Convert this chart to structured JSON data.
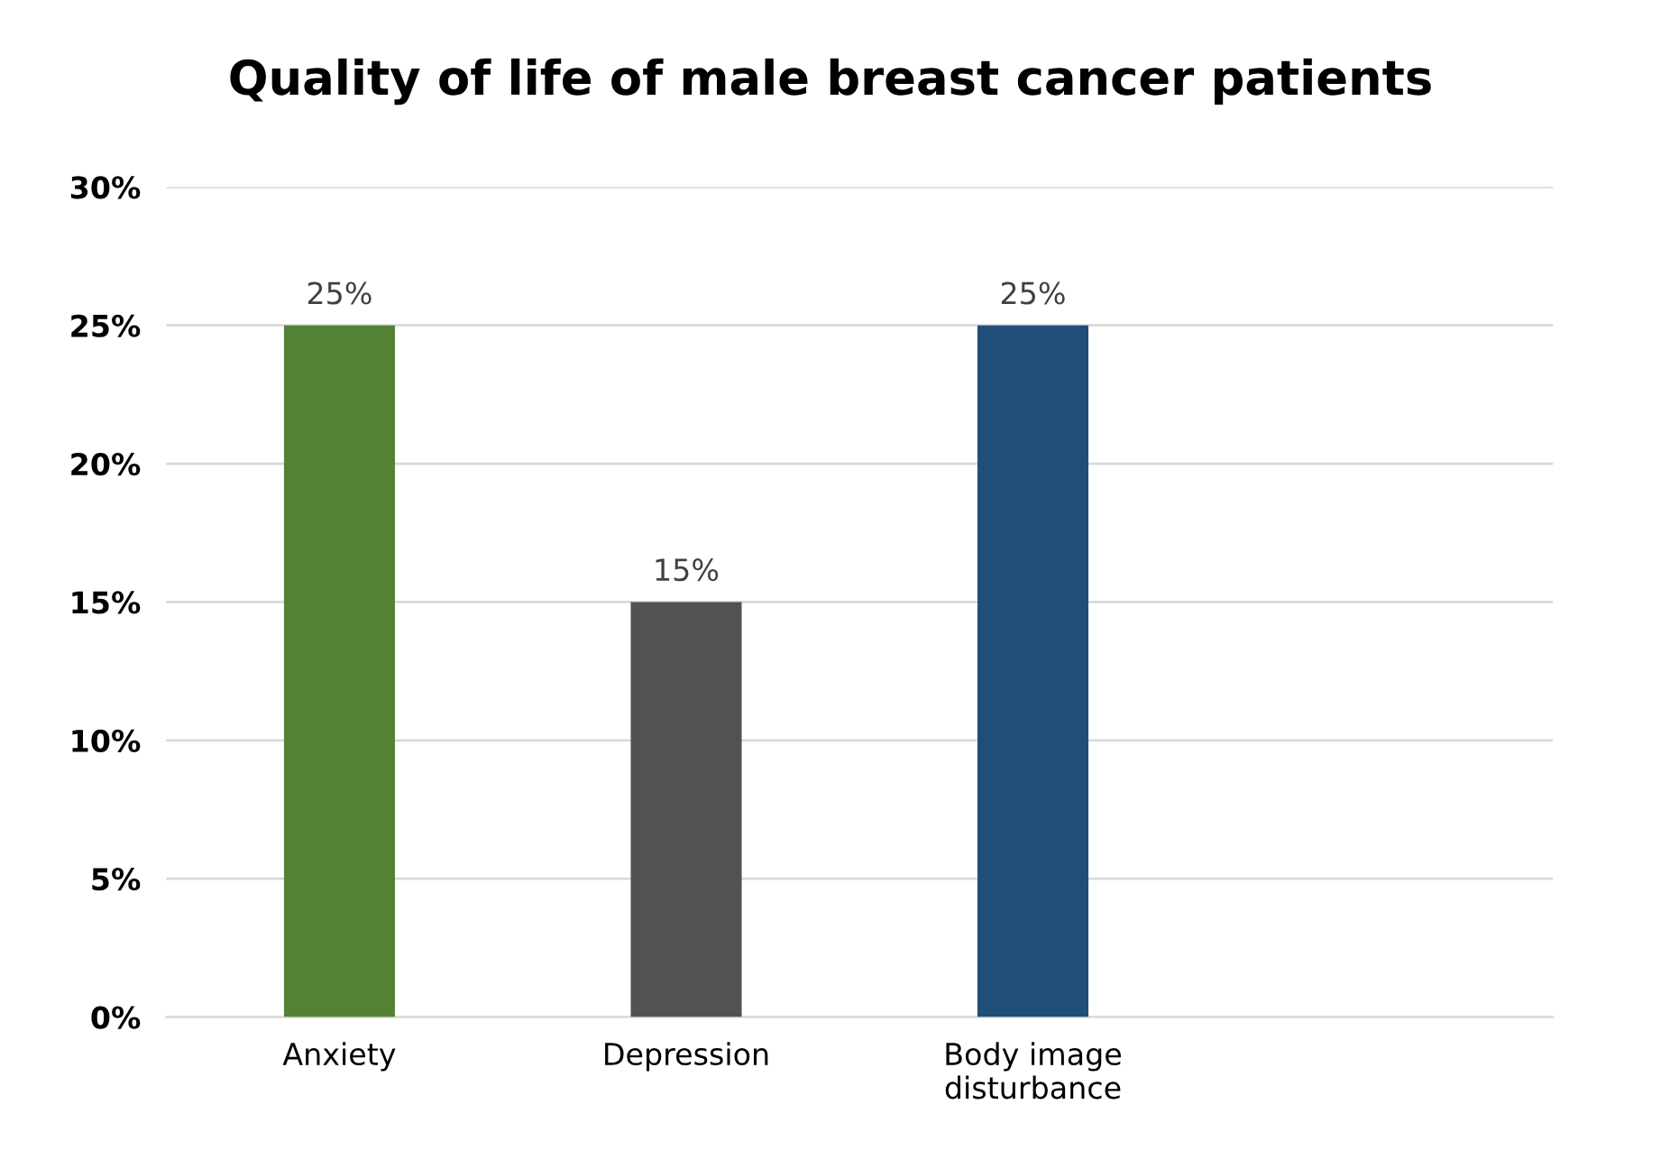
{
  "chart_data": {
    "type": "bar",
    "title": "Quality of life of male breast cancer patients",
    "categories": [
      "Anxiety",
      "Depression",
      "Body image\ndisturbance",
      null
    ],
    "values": [
      25,
      15,
      25,
      null
    ],
    "colors": [
      "#548235",
      "#525252",
      "#1f4e79",
      "#1f4e79"
    ],
    "value_labels": [
      "25%",
      "15%",
      "25%",
      null
    ],
    "ylim": [
      0,
      30
    ],
    "yticks": [
      {
        "value": 0,
        "label": "0%"
      },
      {
        "value": 5,
        "label": "5%"
      },
      {
        "value": 10,
        "label": "10%"
      },
      {
        "value": 15,
        "label": "15%"
      },
      {
        "value": 20,
        "label": "20%"
      },
      {
        "value": 25,
        "label": "25%"
      },
      {
        "value": 30,
        "label": "30%"
      }
    ],
    "grid": "y"
  }
}
